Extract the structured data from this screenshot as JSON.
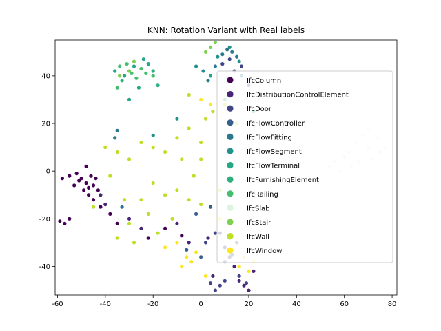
{
  "chart_data": {
    "type": "scatter",
    "title": "KNN: Rotation Variant with Real labels",
    "xlabel": "",
    "ylabel": "",
    "xlim": [
      -61,
      82
    ],
    "ylim": [
      -52,
      55
    ],
    "xticks": [
      -60,
      -40,
      -20,
      0,
      20,
      40,
      60,
      80
    ],
    "yticks": [
      -40,
      -20,
      0,
      20,
      40
    ],
    "grid": false,
    "legend_position": "upper-right",
    "series": [
      {
        "name": "IfcColumn",
        "color": "#440154",
        "values": [
          [
            -48,
            -5
          ],
          [
            -47,
            -7
          ],
          [
            -50,
            -3
          ],
          [
            -46,
            -2
          ],
          [
            -49,
            -8
          ],
          [
            -45,
            -6
          ],
          [
            -52,
            -1
          ],
          [
            -51,
            -4
          ],
          [
            -44,
            -3
          ],
          [
            -47,
            -10
          ],
          [
            -53,
            -6
          ],
          [
            -48,
            2
          ],
          [
            -43,
            -8
          ],
          [
            -55,
            -2
          ],
          [
            -58,
            -3
          ],
          [
            -59,
            -21
          ],
          [
            -57,
            -22
          ],
          [
            -55,
            -20
          ],
          [
            -38,
            -18
          ],
          [
            -42,
            -15
          ],
          [
            -45,
            -12
          ],
          [
            -35,
            -22
          ],
          [
            -22,
            -28
          ],
          [
            -15,
            -24
          ],
          [
            -8,
            -27
          ]
        ]
      },
      {
        "name": "IfcDistributionControlElement",
        "color": "#482475",
        "values": [
          [
            -42,
            -10
          ],
          [
            -40,
            -14
          ],
          [
            -30,
            -20
          ],
          [
            -25,
            -24
          ],
          [
            -10,
            -22
          ],
          [
            -5,
            -30
          ],
          [
            3,
            -28
          ],
          [
            10,
            -32
          ],
          [
            16,
            -46
          ],
          [
            18,
            -48
          ],
          [
            20,
            -50
          ],
          [
            14,
            -40
          ],
          [
            5,
            -44
          ],
          [
            12,
            -36
          ],
          [
            22,
            -42
          ],
          [
            8,
            -26
          ]
        ]
      },
      {
        "name": "IfcDoor",
        "color": "#414487",
        "values": [
          [
            4,
            -47
          ],
          [
            6,
            -50
          ],
          [
            8,
            -48
          ],
          [
            10,
            -46
          ],
          [
            16,
            -44
          ],
          [
            19,
            -47
          ],
          [
            2,
            -30
          ],
          [
            6,
            -26
          ],
          [
            12,
            -28
          ],
          [
            15,
            -30
          ],
          [
            9,
            45
          ],
          [
            12,
            47
          ],
          [
            14,
            42
          ],
          [
            17,
            44
          ],
          [
            20,
            36
          ]
        ]
      },
      {
        "name": "IfcFlowController",
        "color": "#355f8d",
        "values": [
          [
            10,
            -38
          ],
          [
            13,
            -35
          ],
          [
            -2,
            -18
          ],
          [
            4,
            -15
          ],
          [
            -6,
            -33
          ],
          [
            0,
            -36
          ]
        ]
      },
      {
        "name": "IfcFlowFitting",
        "color": "#2a788e",
        "values": [
          [
            9,
            49
          ],
          [
            11,
            51
          ],
          [
            13,
            50
          ],
          [
            15,
            48
          ],
          [
            6,
            44
          ],
          [
            17,
            40
          ],
          [
            -36,
            14
          ],
          [
            -35,
            17
          ],
          [
            3,
            38
          ],
          [
            -33,
            -15
          ]
        ]
      },
      {
        "name": "IfcFlowSegment",
        "color": "#21918c",
        "values": [
          [
            7,
            48
          ],
          [
            12,
            52
          ],
          [
            16,
            46
          ],
          [
            -2,
            44
          ],
          [
            1,
            42
          ],
          [
            -20,
            15
          ],
          [
            -10,
            22
          ]
        ]
      },
      {
        "name": "IfcFlowTerminal",
        "color": "#22a884",
        "values": [
          [
            -36,
            42
          ],
          [
            -32,
            40
          ],
          [
            -28,
            44
          ],
          [
            -24,
            47
          ],
          [
            -26,
            35
          ],
          [
            -30,
            30
          ],
          [
            4,
            40
          ],
          [
            -22,
            45
          ]
        ]
      },
      {
        "name": "IfcFurnishingElement",
        "color": "#2cb17e",
        "values": [
          [
            -33,
            38
          ],
          [
            -20,
            42
          ],
          [
            -18,
            36
          ],
          [
            10,
            30
          ],
          [
            22,
            25
          ]
        ]
      },
      {
        "name": "IfcRailing",
        "color": "#44bf70",
        "values": [
          [
            -34,
            44
          ],
          [
            -31,
            45
          ],
          [
            -29,
            41
          ],
          [
            -27,
            39
          ],
          [
            -25,
            43
          ],
          [
            -23,
            41
          ],
          [
            -20,
            40
          ],
          [
            -35,
            35
          ]
        ]
      },
      {
        "name": "IfcSlab",
        "color": "#dcf5e0",
        "values": [
          [
            62,
            8
          ],
          [
            65,
            12
          ],
          [
            68,
            15
          ],
          [
            70,
            10
          ],
          [
            72,
            5
          ],
          [
            74,
            14
          ],
          [
            66,
            4
          ],
          [
            63,
            2
          ],
          [
            75,
            8
          ],
          [
            77,
            10
          ],
          [
            70,
            18
          ],
          [
            60,
            6
          ],
          [
            56,
            4
          ],
          [
            58,
            0
          ],
          [
            54,
            2
          ]
        ]
      },
      {
        "name": "IfcStair",
        "color": "#7ad151",
        "values": [
          [
            2,
            50
          ],
          [
            4,
            52
          ],
          [
            6,
            54
          ],
          [
            -30,
            42
          ],
          [
            -34,
            40
          ],
          [
            -28,
            46
          ]
        ]
      },
      {
        "name": "IfcWall",
        "color": "#bddf26",
        "values": [
          [
            -35,
            -28
          ],
          [
            -30,
            -22
          ],
          [
            -25,
            -12
          ],
          [
            -20,
            -5
          ],
          [
            -15,
            -10
          ],
          [
            -10,
            -8
          ],
          [
            -5,
            -12
          ],
          [
            0,
            -14
          ],
          [
            -40,
            10
          ],
          [
            -35,
            8
          ],
          [
            -30,
            5
          ],
          [
            -25,
            12
          ],
          [
            -20,
            10
          ],
          [
            -15,
            8
          ],
          [
            -10,
            14
          ],
          [
            -5,
            18
          ],
          [
            0,
            12
          ],
          [
            5,
            25
          ],
          [
            10,
            28
          ],
          [
            15,
            20
          ],
          [
            -45,
            -15
          ],
          [
            -38,
            -2
          ],
          [
            -32,
            -12
          ],
          [
            -5,
            32
          ],
          [
            2,
            22
          ],
          [
            -8,
            5
          ],
          [
            0,
            5
          ],
          [
            -3,
            -2
          ],
          [
            -12,
            -20
          ],
          [
            -22,
            -18
          ],
          [
            -18,
            -26
          ],
          [
            -28,
            -30
          ],
          [
            8,
            -8
          ]
        ]
      },
      {
        "name": "IfcWindow",
        "color": "#fde725",
        "values": [
          [
            -15,
            -32
          ],
          [
            -10,
            -30
          ],
          [
            -8,
            -40
          ],
          [
            -4,
            -38
          ],
          [
            -2,
            -34
          ],
          [
            2,
            -44
          ],
          [
            8,
            -20
          ],
          [
            12,
            -22
          ],
          [
            16,
            -40
          ],
          [
            18,
            -36
          ],
          [
            20,
            -42
          ],
          [
            22,
            -38
          ],
          [
            0,
            30
          ],
          [
            4,
            28
          ],
          [
            -6,
            -36
          ]
        ]
      }
    ]
  }
}
